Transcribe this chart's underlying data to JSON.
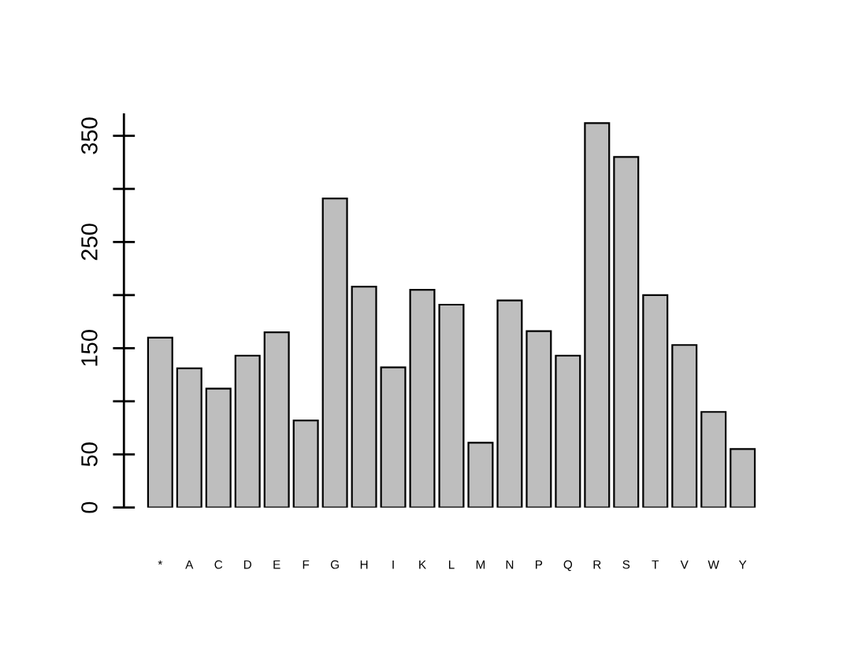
{
  "chart_data": {
    "type": "bar",
    "categories": [
      "*",
      "A",
      "C",
      "D",
      "E",
      "F",
      "G",
      "H",
      "I",
      "K",
      "L",
      "M",
      "N",
      "P",
      "Q",
      "R",
      "S",
      "T",
      "V",
      "W",
      "Y"
    ],
    "values": [
      160,
      131,
      112,
      143,
      165,
      82,
      291,
      208,
      132,
      205,
      191,
      61,
      195,
      166,
      143,
      362,
      330,
      200,
      153,
      90,
      55
    ],
    "color": "#bebebe",
    "ylim": [
      0,
      370
    ],
    "yticks": [
      0,
      50,
      {
        "value": 100,
        "label": null
      },
      150,
      {
        "value": 200,
        "label": null
      },
      250,
      {
        "value": 300,
        "label": null
      },
      350
    ]
  }
}
